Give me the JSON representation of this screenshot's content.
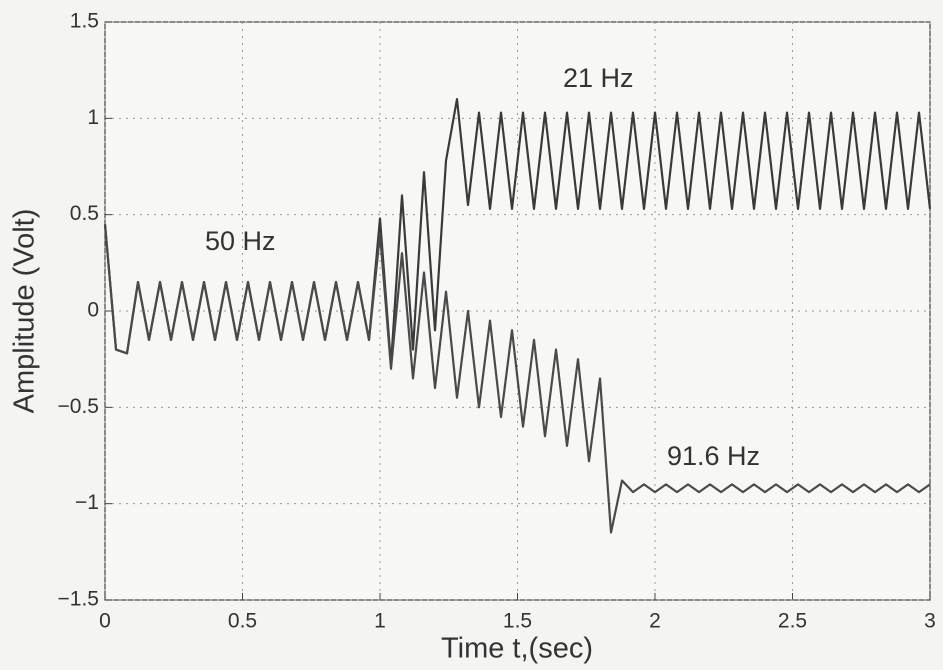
{
  "chart_data": {
    "type": "line",
    "x_label": "Time t,(sec)",
    "y_label": "Amplitude (Volt)",
    "annotations": [
      "50 Hz",
      "21 Hz",
      "91.6 Hz"
    ],
    "x": [
      0,
      0.04,
      0.08,
      0.12,
      0.16,
      0.2,
      0.24,
      0.28,
      0.32,
      0.36,
      0.4,
      0.44,
      0.48,
      0.52,
      0.56,
      0.6,
      0.64,
      0.68,
      0.72,
      0.76,
      0.8,
      0.84,
      0.88,
      0.92,
      0.96,
      1.0,
      1.04,
      1.08,
      1.12,
      1.16,
      1.2,
      1.24,
      1.28,
      1.32,
      1.36,
      1.4,
      1.44,
      1.48,
      1.52,
      1.56,
      1.6,
      1.64,
      1.68,
      1.72,
      1.76,
      1.8,
      1.84,
      1.88,
      1.92,
      1.96,
      2.0,
      2.04,
      2.08,
      2.12,
      2.16,
      2.2,
      2.24,
      2.28,
      2.32,
      2.36,
      2.4,
      2.44,
      2.48,
      2.52,
      2.56,
      2.6,
      2.64,
      2.68,
      2.72,
      2.76,
      2.8,
      2.84,
      2.88,
      2.92,
      2.96,
      3.0
    ],
    "series": [
      {
        "color": "#3a3a3a",
        "values": [
          0.45,
          -0.2,
          -0.22,
          0.15,
          -0.15,
          0.15,
          -0.15,
          0.15,
          -0.15,
          0.15,
          -0.15,
          0.15,
          -0.15,
          0.15,
          -0.15,
          0.15,
          -0.15,
          0.15,
          -0.15,
          0.15,
          -0.15,
          0.15,
          -0.15,
          0.15,
          -0.15,
          0.48,
          -0.28,
          0.6,
          -0.2,
          0.72,
          -0.1,
          0.78,
          1.1,
          0.55,
          1.03,
          0.53,
          1.03,
          0.53,
          1.03,
          0.53,
          1.03,
          0.53,
          1.03,
          0.53,
          1.03,
          0.53,
          1.03,
          0.53,
          1.03,
          0.53,
          1.03,
          0.53,
          1.03,
          0.53,
          1.03,
          0.53,
          1.03,
          0.53,
          1.03,
          0.53,
          1.03,
          0.53,
          1.03,
          0.53,
          1.03,
          0.53,
          1.03,
          0.53,
          1.03,
          0.53,
          1.03,
          0.53,
          1.03,
          0.53,
          1.03,
          0.53
        ]
      },
      {
        "color": "#4a4a4a",
        "values": [
          0.45,
          -0.2,
          -0.22,
          0.15,
          -0.15,
          0.15,
          -0.15,
          0.15,
          -0.15,
          0.15,
          -0.15,
          0.15,
          -0.15,
          0.15,
          -0.15,
          0.15,
          -0.15,
          0.15,
          -0.15,
          0.15,
          -0.15,
          0.15,
          -0.15,
          0.15,
          -0.15,
          0.4,
          -0.3,
          0.3,
          -0.35,
          0.2,
          -0.4,
          0.1,
          -0.45,
          0.0,
          -0.5,
          -0.05,
          -0.55,
          -0.1,
          -0.6,
          -0.15,
          -0.65,
          -0.2,
          -0.7,
          -0.25,
          -0.78,
          -0.35,
          -1.15,
          -0.88,
          -0.94,
          -0.9,
          -0.94,
          -0.9,
          -0.94,
          -0.9,
          -0.94,
          -0.9,
          -0.94,
          -0.9,
          -0.94,
          -0.9,
          -0.94,
          -0.9,
          -0.94,
          -0.9,
          -0.94,
          -0.9,
          -0.94,
          -0.9,
          -0.94,
          -0.9,
          -0.94,
          -0.9,
          -0.94,
          -0.9,
          -0.94,
          -0.9
        ]
      }
    ],
    "xlim": [
      0,
      3
    ],
    "xticks": [
      0,
      0.5,
      1,
      1.5,
      2,
      2.5,
      3
    ],
    "ylim": [
      -1.5,
      1.5
    ],
    "yticks": [
      {
        "value": -1.5,
        "label": "−1.5"
      },
      {
        "value": -1,
        "label": "−1"
      },
      {
        "value": -0.5,
        "label": "−0.5"
      },
      0,
      0.5,
      1,
      1.5
    ],
    "grid": true
  }
}
